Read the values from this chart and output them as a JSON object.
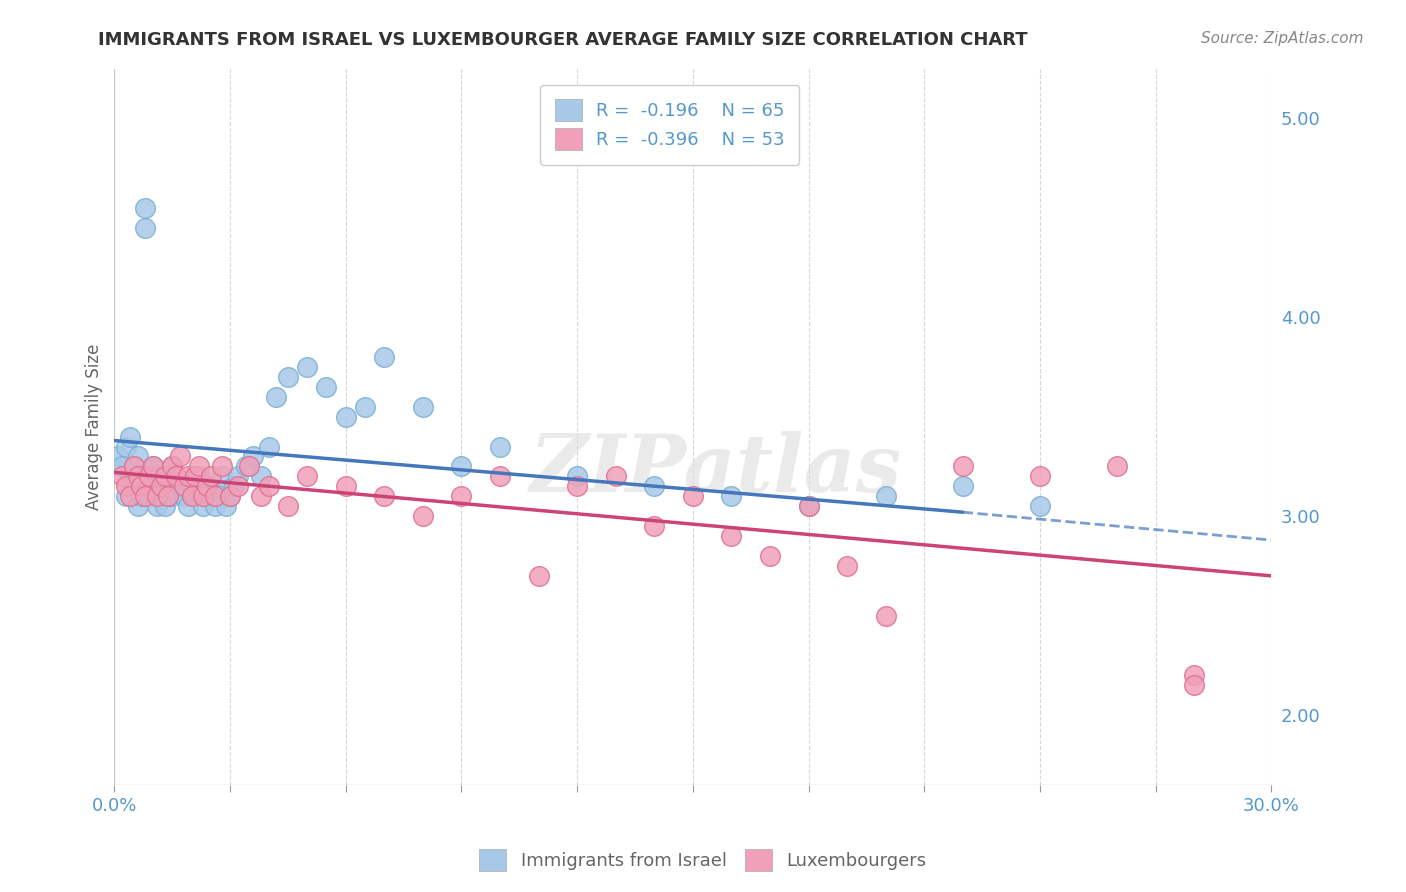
{
  "title": "IMMIGRANTS FROM ISRAEL VS LUXEMBOURGER AVERAGE FAMILY SIZE CORRELATION CHART",
  "source_text": "Source: ZipAtlas.com",
  "ylabel": "Average Family Size",
  "xlim": [
    0.0,
    0.3
  ],
  "ylim": [
    1.65,
    5.25
  ],
  "yticks_right": [
    2.0,
    3.0,
    4.0,
    5.0
  ],
  "series1_color": "#a8c8e8",
  "series2_color": "#f0a0b8",
  "series1_edge": "#7bafd4",
  "series2_edge": "#e07090",
  "series1_label": "Immigrants from Israel",
  "series2_label": "Luxembourgers",
  "trend1_color": "#4477bb",
  "trend2_color": "#cc4477",
  "background_color": "#ffffff",
  "grid_color": "#cccccc",
  "title_color": "#333333",
  "axis_color": "#5599cc",
  "trend1_x0": 0.0,
  "trend1_y0": 3.38,
  "trend1_x1": 0.22,
  "trend1_y1": 3.02,
  "trend1_dash_x0": 0.22,
  "trend1_dash_y0": 3.02,
  "trend1_dash_x1": 0.3,
  "trend1_dash_y1": 2.88,
  "trend2_x0": 0.0,
  "trend2_y0": 3.22,
  "trend2_x1": 0.3,
  "trend2_y1": 2.7,
  "series1_x": [
    0.001,
    0.002,
    0.003,
    0.003,
    0.004,
    0.004,
    0.005,
    0.005,
    0.006,
    0.006,
    0.007,
    0.007,
    0.008,
    0.008,
    0.009,
    0.009,
    0.01,
    0.01,
    0.011,
    0.011,
    0.012,
    0.012,
    0.013,
    0.013,
    0.014,
    0.015,
    0.015,
    0.016,
    0.017,
    0.018,
    0.019,
    0.02,
    0.021,
    0.022,
    0.023,
    0.024,
    0.025,
    0.026,
    0.027,
    0.028,
    0.029,
    0.03,
    0.031,
    0.032,
    0.034,
    0.036,
    0.038,
    0.04,
    0.042,
    0.045,
    0.05,
    0.055,
    0.06,
    0.065,
    0.07,
    0.08,
    0.09,
    0.1,
    0.12,
    0.14,
    0.16,
    0.18,
    0.2,
    0.22,
    0.24
  ],
  "series1_y": [
    3.3,
    3.25,
    3.1,
    3.35,
    3.2,
    3.4,
    3.15,
    3.25,
    3.05,
    3.3,
    3.1,
    3.2,
    4.55,
    4.45,
    3.1,
    3.2,
    3.15,
    3.25,
    3.05,
    3.15,
    3.1,
    3.2,
    3.05,
    3.15,
    3.1,
    3.1,
    3.25,
    3.2,
    3.15,
    3.1,
    3.05,
    3.15,
    3.1,
    3.2,
    3.05,
    3.15,
    3.1,
    3.05,
    3.1,
    3.2,
    3.05,
    3.1,
    3.15,
    3.2,
    3.25,
    3.3,
    3.2,
    3.35,
    3.6,
    3.7,
    3.75,
    3.65,
    3.5,
    3.55,
    3.8,
    3.55,
    3.25,
    3.35,
    3.2,
    3.15,
    3.1,
    3.05,
    3.1,
    3.15,
    3.05
  ],
  "series2_x": [
    0.002,
    0.003,
    0.004,
    0.005,
    0.006,
    0.007,
    0.008,
    0.009,
    0.01,
    0.011,
    0.012,
    0.013,
    0.014,
    0.015,
    0.016,
    0.017,
    0.018,
    0.019,
    0.02,
    0.021,
    0.022,
    0.023,
    0.024,
    0.025,
    0.026,
    0.028,
    0.03,
    0.032,
    0.035,
    0.038,
    0.04,
    0.045,
    0.05,
    0.06,
    0.07,
    0.08,
    0.09,
    0.1,
    0.11,
    0.12,
    0.13,
    0.14,
    0.15,
    0.16,
    0.17,
    0.18,
    0.19,
    0.2,
    0.22,
    0.24,
    0.26,
    0.28,
    0.28
  ],
  "series2_y": [
    3.2,
    3.15,
    3.1,
    3.25,
    3.2,
    3.15,
    3.1,
    3.2,
    3.25,
    3.1,
    3.15,
    3.2,
    3.1,
    3.25,
    3.2,
    3.3,
    3.15,
    3.2,
    3.1,
    3.2,
    3.25,
    3.1,
    3.15,
    3.2,
    3.1,
    3.25,
    3.1,
    3.15,
    3.25,
    3.1,
    3.15,
    3.05,
    3.2,
    3.15,
    3.1,
    3.0,
    3.1,
    3.2,
    2.7,
    3.15,
    3.2,
    2.95,
    3.1,
    2.9,
    2.8,
    3.05,
    2.75,
    2.5,
    3.25,
    3.2,
    3.25,
    2.2,
    2.15
  ]
}
